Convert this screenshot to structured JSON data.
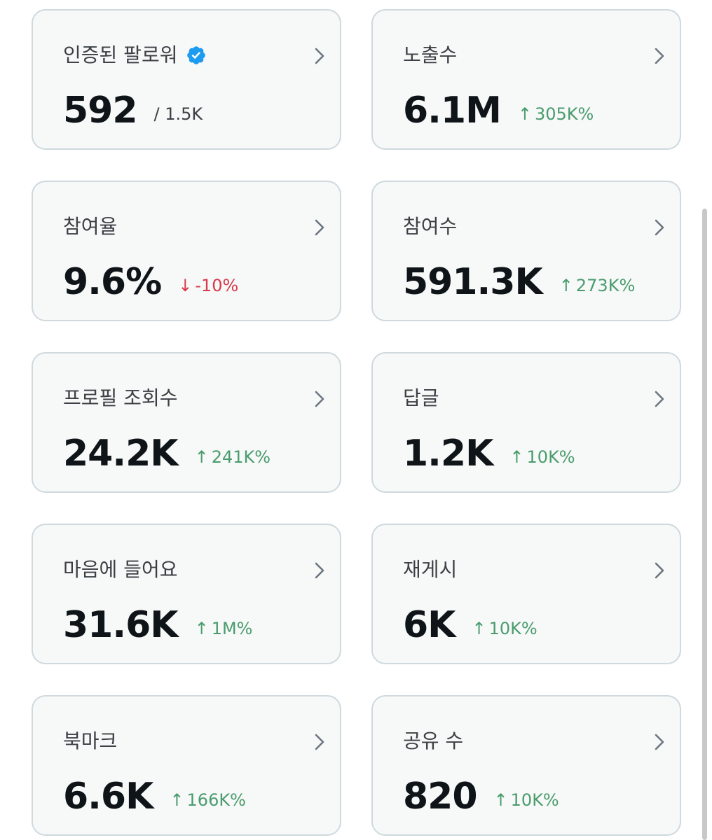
{
  "cards": [
    {
      "label": "인증된 팔로워",
      "value": "592",
      "sub": "/ 1.5K",
      "verified": true
    },
    {
      "label": "노출수",
      "value": "6.1M",
      "change": "305K%",
      "direction": "up"
    },
    {
      "label": "참여율",
      "value": "9.6%",
      "change": "-10%",
      "direction": "down"
    },
    {
      "label": "참여수",
      "value": "591.3K",
      "change": "273K%",
      "direction": "up"
    },
    {
      "label": "프로필 조회수",
      "value": "24.2K",
      "change": "241K%",
      "direction": "up"
    },
    {
      "label": "답글",
      "value": "1.2K",
      "change": "10K%",
      "direction": "up"
    },
    {
      "label": "마음에 들어요",
      "value": "31.6K",
      "change": "1M%",
      "direction": "up"
    },
    {
      "label": "재게시",
      "value": "6K",
      "change": "10K%",
      "direction": "up"
    },
    {
      "label": "북마크",
      "value": "6.6K",
      "change": "166K%",
      "direction": "up"
    },
    {
      "label": "공유 수",
      "value": "820",
      "change": "10K%",
      "direction": "up"
    }
  ],
  "arrows": {
    "up": "↑",
    "down": "↓"
  },
  "icons": {
    "verified": "verified-badge-icon",
    "chevron": "chevron-right-icon"
  },
  "colors": {
    "up": "#4a9c6d",
    "down": "#d9394b",
    "verified": "#1d9bf0"
  }
}
